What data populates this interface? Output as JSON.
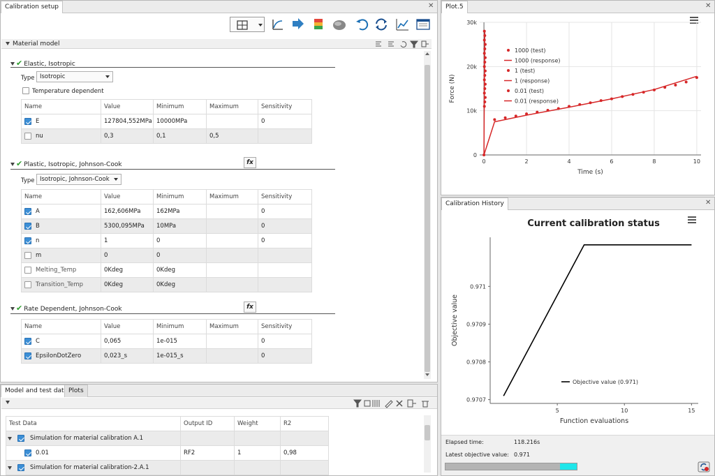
{
  "left_panel": {
    "tab_title": "Calibration setup",
    "material_model_label": "Material model",
    "groups": [
      {
        "title": "Elastic, Isotropic",
        "type_label": "Type",
        "type_value": "Isotropic",
        "temp_dependent_label": "Temperature dependent",
        "headers": [
          "Name",
          "Value",
          "Minimum",
          "Maximum",
          "Sensitivity"
        ],
        "rows": [
          {
            "name": "E",
            "value": "127804,552MPa",
            "min": "10000MPa",
            "max": "",
            "sens": "0",
            "checked": true
          },
          {
            "name": "nu",
            "value": "0,3",
            "min": "0,1",
            "max": "0,5",
            "sens": "",
            "checked": false
          }
        ]
      },
      {
        "title": "Plastic, Isotropic, Johnson-Cook",
        "type_label": "Type",
        "type_value": "Isotropic, Johnson-Cook",
        "fx_label": "fx",
        "headers": [
          "Name",
          "Value",
          "Minimum",
          "Maximum",
          "Sensitivity"
        ],
        "rows": [
          {
            "name": "A",
            "value": "162,606MPa",
            "min": "162MPa",
            "max": "",
            "sens": "0",
            "checked": true
          },
          {
            "name": "B",
            "value": "5300,095MPa",
            "min": "10MPa",
            "max": "",
            "sens": "0",
            "checked": true
          },
          {
            "name": "n",
            "value": "1",
            "min": "0",
            "max": "",
            "sens": "0",
            "checked": true
          },
          {
            "name": "m",
            "value": "0",
            "min": "0",
            "max": "",
            "sens": "",
            "checked": false
          },
          {
            "name": "Melting_Temp",
            "value": "0Kdeg",
            "min": "0Kdeg",
            "max": "",
            "sens": "",
            "checked": false
          },
          {
            "name": "Transition_Temp",
            "value": "0Kdeg",
            "min": "0Kdeg",
            "max": "",
            "sens": "",
            "checked": false
          }
        ]
      },
      {
        "title": "Rate Dependent, Johnson-Cook",
        "fx_label": "fx",
        "headers": [
          "Name",
          "Value",
          "Minimum",
          "Maximum",
          "Sensitivity"
        ],
        "rows": [
          {
            "name": "C",
            "value": "0,065",
            "min": "1e-015",
            "max": "",
            "sens": "0",
            "checked": true
          },
          {
            "name": "EpsilonDotZero",
            "value": "0,023_s",
            "min": "1e-015_s",
            "max": "",
            "sens": "0",
            "checked": true
          }
        ]
      }
    ]
  },
  "bottom_panel": {
    "tabs": [
      "Model and test data",
      "Plots"
    ],
    "headers": [
      "Test Data",
      "Output ID",
      "Weight",
      "R2"
    ],
    "rows": [
      {
        "label": "Simulation for material calibration A.1",
        "output": "",
        "weight": "",
        "r2": ""
      },
      {
        "label": "0.01",
        "output": "RF2",
        "weight": "1",
        "r2": "0,98"
      },
      {
        "label": "Simulation for material calibration-2.A.1",
        "output": "",
        "weight": "",
        "r2": ""
      }
    ]
  },
  "plot5": {
    "tab_title": "Plot.5",
    "chart_data": {
      "type": "scatter",
      "xlabel": "Time (s)",
      "ylabel": "Force (N)",
      "xlim": [
        -0.2,
        10.2
      ],
      "ylim": [
        0,
        30000
      ],
      "xticks": [
        "0",
        "2",
        "4",
        "6",
        "8",
        "10"
      ],
      "yticks": [
        "0",
        "10k",
        "20k",
        "30k"
      ],
      "legend": [
        "1000 (test)",
        "1000 (response)",
        "1 (test)",
        "1 (response)",
        "0.01 (test)",
        "0.01 (response)"
      ],
      "legend_position": "top-left",
      "color": "#d62728",
      "test_points": [
        [
          0.0,
          0
        ],
        [
          0.02,
          11000
        ],
        [
          0.02,
          14000
        ],
        [
          0.02,
          17000
        ],
        [
          0.02,
          20000
        ],
        [
          0.02,
          23000
        ],
        [
          0.02,
          26000
        ],
        [
          0.02,
          28000
        ],
        [
          0.04,
          12000
        ],
        [
          0.04,
          15000
        ],
        [
          0.04,
          18000
        ],
        [
          0.04,
          21000
        ],
        [
          0.04,
          24000
        ],
        [
          0.04,
          27000
        ],
        [
          0.06,
          13000
        ],
        [
          0.06,
          16000
        ],
        [
          0.06,
          19000
        ],
        [
          0.06,
          22000
        ],
        [
          0.06,
          25000
        ],
        [
          0.5,
          8000
        ],
        [
          1.0,
          8400
        ],
        [
          1.5,
          8800
        ],
        [
          2.0,
          9300
        ],
        [
          2.5,
          9700
        ],
        [
          3.0,
          10100
        ],
        [
          3.5,
          10500
        ],
        [
          4.0,
          11000
        ],
        [
          4.5,
          11400
        ],
        [
          5.0,
          11800
        ],
        [
          5.5,
          12300
        ],
        [
          6.0,
          12700
        ],
        [
          6.5,
          13200
        ],
        [
          7.0,
          13700
        ],
        [
          7.5,
          14200
        ],
        [
          8.0,
          14700
        ],
        [
          8.5,
          15300
        ],
        [
          9.0,
          15800
        ],
        [
          9.5,
          16500
        ],
        [
          10.0,
          17500
        ]
      ],
      "response_lines": [
        [
          [
            0.0,
            0
          ],
          [
            0.01,
            8000
          ],
          [
            0.04,
            28000
          ]
        ],
        [
          [
            0.0,
            0
          ],
          [
            0.5,
            7500
          ],
          [
            2.0,
            9000
          ],
          [
            4.0,
            10800
          ],
          [
            6.0,
            12700
          ],
          [
            8.0,
            14800
          ],
          [
            10.0,
            17800
          ]
        ]
      ]
    }
  },
  "history": {
    "tab_title": "Calibration History",
    "chart_data": {
      "type": "line",
      "title": "Current calibration status",
      "xlabel": "Function evaluations",
      "ylabel": "Objective value",
      "xlim": [
        0,
        15.5
      ],
      "ylim": [
        0.97069,
        0.97113
      ],
      "xticks": [
        5,
        10,
        15
      ],
      "yticks": [
        0.9707,
        0.9708,
        0.9709,
        0.971
      ],
      "yticklabels": [
        "0.9707",
        "0.9708",
        "0.9709",
        "0.971"
      ],
      "series": [
        {
          "name": "Objective value (0.971)",
          "x": [
            1,
            7,
            15
          ],
          "y": [
            0.97071,
            0.97111,
            0.97111
          ],
          "color": "#000000"
        }
      ],
      "legend_position": "bottom-right"
    },
    "elapsed_label": "Elapsed time:",
    "elapsed_value": "118.216s",
    "latest_label": "Latest objective value:",
    "latest_value": "0.971",
    "progress": 0.87
  }
}
